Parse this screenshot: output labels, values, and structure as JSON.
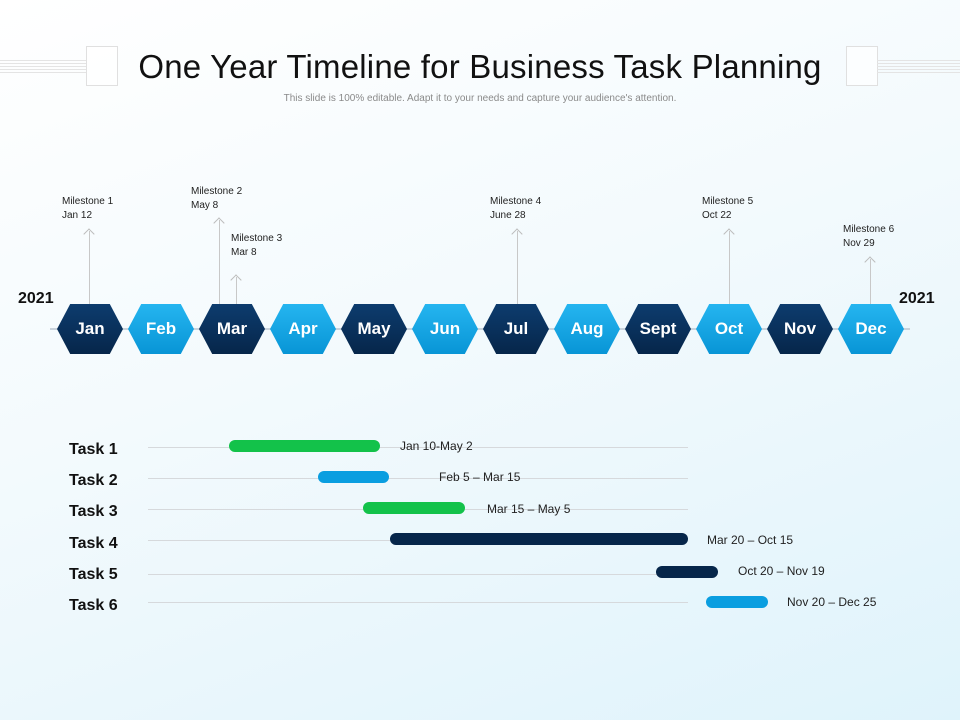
{
  "title": "One Year Timeline for Business Task Planning",
  "subtitle": "This slide is 100% editable. Adapt it to your needs and capture your audience's attention.",
  "year_start": "2021",
  "year_end": "2021",
  "colors": {
    "dark": "#06264a",
    "light": "#0a9ee0",
    "green": "#13c24a"
  },
  "months": [
    {
      "label": "Jan",
      "tone": "dark"
    },
    {
      "label": "Feb",
      "tone": "light"
    },
    {
      "label": "Mar",
      "tone": "dark"
    },
    {
      "label": "Apr",
      "tone": "light"
    },
    {
      "label": "May",
      "tone": "dark"
    },
    {
      "label": "Jun",
      "tone": "light"
    },
    {
      "label": "Jul",
      "tone": "dark"
    },
    {
      "label": "Aug",
      "tone": "light"
    },
    {
      "label": "Sept",
      "tone": "dark"
    },
    {
      "label": "Oct",
      "tone": "light"
    },
    {
      "label": "Nov",
      "tone": "dark"
    },
    {
      "label": "Dec",
      "tone": "light"
    }
  ],
  "milestones": [
    {
      "name": "Milestone  1",
      "date": "Jan 12"
    },
    {
      "name": "Milestone  2",
      "date": "May 8"
    },
    {
      "name": "Milestone  3",
      "date": "Mar 8"
    },
    {
      "name": "Milestone  4",
      "date": "June 28"
    },
    {
      "name": "Milestone  5",
      "date": "Oct 22"
    },
    {
      "name": "Milestone  6",
      "date": "Nov 29"
    }
  ],
  "tasks": [
    {
      "label": "Task 1",
      "range": "Jan 10-May 2",
      "color": "green"
    },
    {
      "label": "Task 2",
      "range": "Feb 5 – Mar 15",
      "color": "light"
    },
    {
      "label": "Task 3",
      "range": "Mar  15 – May 5",
      "color": "green"
    },
    {
      "label": "Task 4",
      "range": "Mar 20 – Oct 15",
      "color": "dark"
    },
    {
      "label": "Task 5",
      "range": "Oct 20 – Nov 19",
      "color": "dark"
    },
    {
      "label": "Task 6",
      "range": "Nov 20 – Dec 25",
      "color": "light"
    }
  ]
}
